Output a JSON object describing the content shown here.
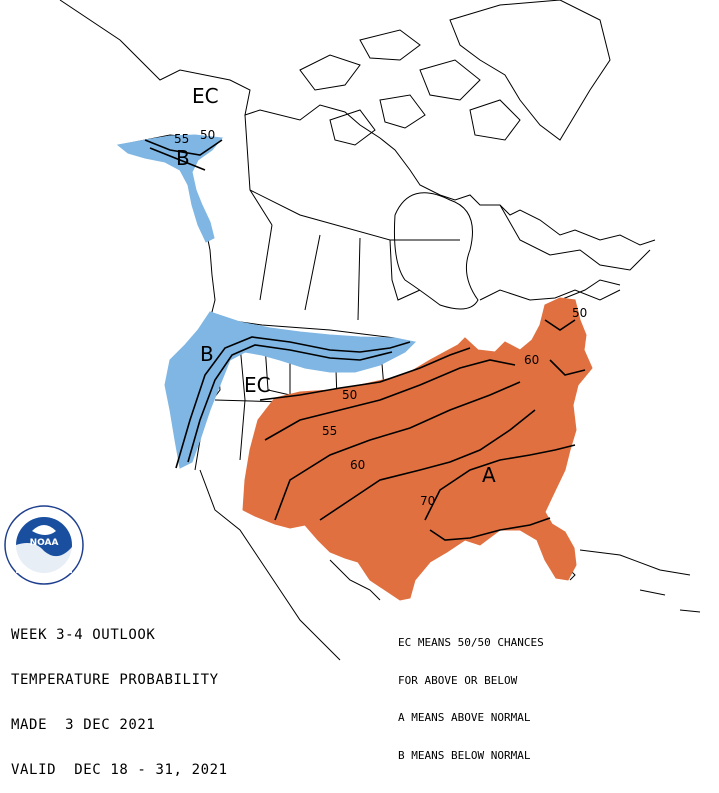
{
  "map": {
    "title_lines": [
      "WEEK 3-4 OUTLOOK",
      "TEMPERATURE PROBABILITY",
      "MADE  3 DEC 2021",
      "VALID  DEC 18 - 31, 2021"
    ],
    "legend_lines": [
      "EC MEANS 50/50 CHANCES",
      "FOR ABOVE OR BELOW",
      "A MEANS ABOVE NORMAL",
      "B MEANS BELOW NORMAL"
    ],
    "region_labels": {
      "ec_alaska": "EC",
      "ec_west": "EC",
      "b_alaska": "B",
      "b_northwest": "B",
      "a_southeast": "A"
    },
    "contour_labels": {
      "ak_55": "55",
      "ak_50": "50",
      "c50": "50",
      "c55": "55",
      "c60": "60",
      "c70": "70",
      "ne_50": "50",
      "ne_60": "60"
    },
    "colors": {
      "above_normal": "#e07040",
      "below_normal": "#7fb6e3",
      "outline": "#000000",
      "background": "#ffffff"
    },
    "logo": {
      "text": "NOAA",
      "ring_text": "NATIONAL OCEANIC AND ATMOSPHERIC ADMINISTRATION"
    }
  }
}
